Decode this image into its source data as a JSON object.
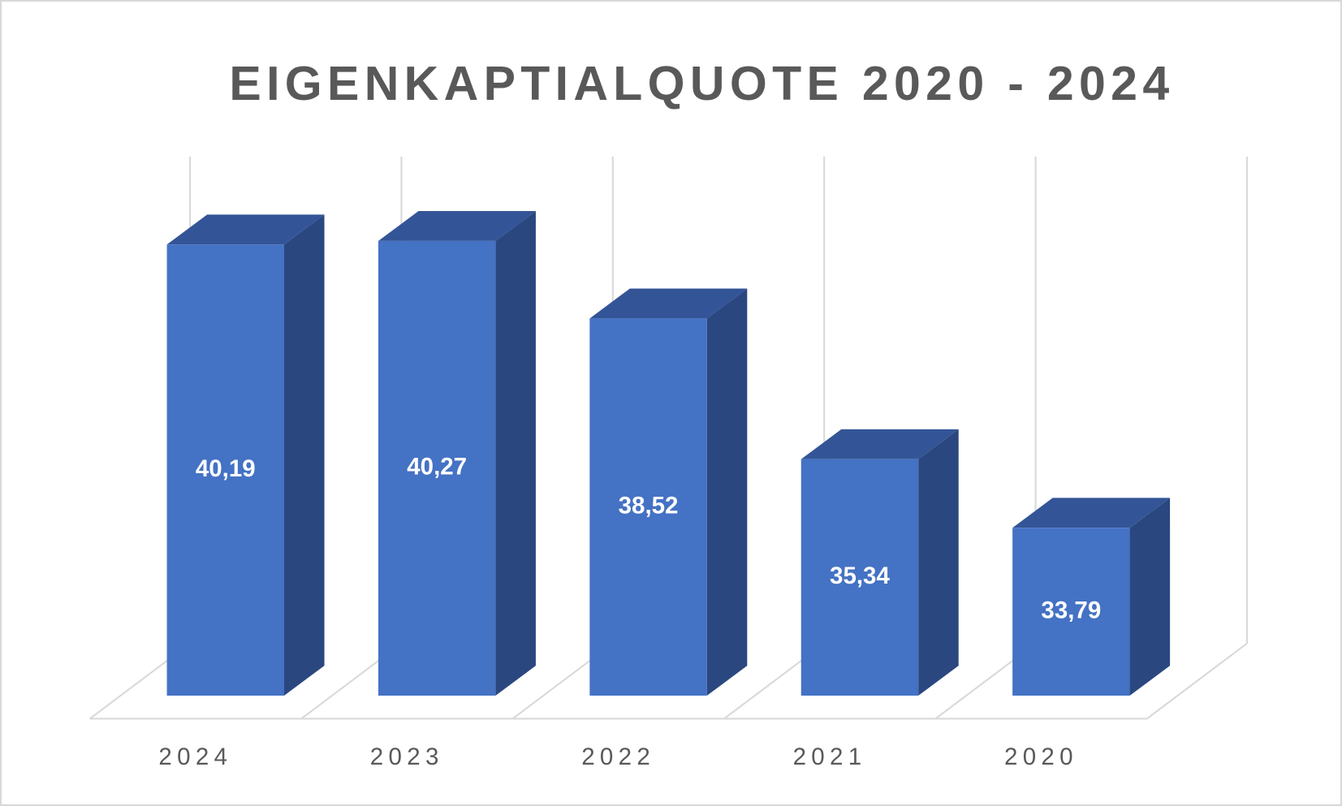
{
  "chart_data": {
    "type": "bar3d",
    "title": "EIGENKAPTIALQUOTE 2020 - 2024",
    "categories": [
      "2024",
      "2023",
      "2022",
      "2021",
      "2020"
    ],
    "values": [
      40.19,
      40.27,
      38.52,
      35.34,
      33.79
    ],
    "value_labels": [
      "40,19",
      "40,27",
      "38,52",
      "35,34",
      "33,79"
    ],
    "color": "#4472c4",
    "side_color": "#2a4780",
    "top_color": "#335597",
    "ylim": [
      30,
      41.5
    ]
  }
}
